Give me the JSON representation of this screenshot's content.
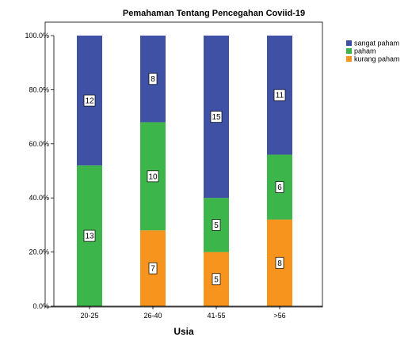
{
  "chart_data": {
    "type": "bar",
    "stacked": true,
    "percent": true,
    "title": "Pemahaman Tentang Pencegahan Coviid-19",
    "xlabel": "Usia",
    "ylabel": "",
    "categories": [
      "20-25",
      "26-40",
      "41-55",
      ">56"
    ],
    "series": [
      {
        "name": "kurang paham",
        "color": "#f7941d",
        "values": [
          0,
          7,
          5,
          8
        ]
      },
      {
        "name": "paham",
        "color": "#3cb54a",
        "values": [
          13,
          10,
          5,
          6
        ]
      },
      {
        "name": "sangat paham",
        "color": "#3f51a5",
        "values": [
          12,
          8,
          15,
          11
        ]
      }
    ],
    "legend_order": [
      "sangat paham",
      "paham",
      "kurang paham"
    ],
    "y_ticks": [
      "0.0%",
      "20.0%",
      "40.0%",
      "60.0%",
      "80.0%",
      "100.0%"
    ],
    "ylim": [
      0,
      100
    ],
    "grid": false,
    "legend_position": "right"
  }
}
